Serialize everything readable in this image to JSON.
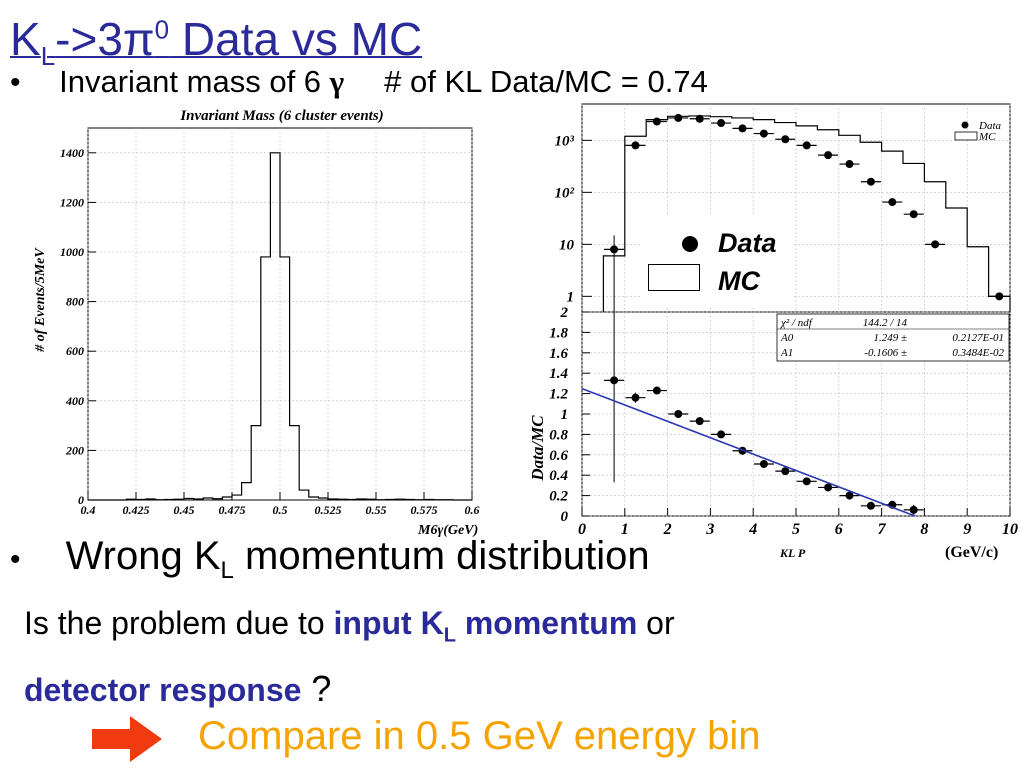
{
  "slide": {
    "title": {
      "main": "K",
      "sub": "L",
      "arrow": "->3",
      "pi": "π",
      "sup": "0",
      "rest": " Data vs MC"
    },
    "bullet_dot": "•",
    "bullet1": {
      "text": "Invariant mass of 6 ",
      "gamma": "γ",
      "ratio_text": "# of KL Data/MC  = 0.74"
    },
    "bullet2": {
      "pre": "Wrong K",
      "sub": "L",
      "post": " momentum distribution"
    },
    "question_line1": {
      "pre": "Is the problem due to ",
      "hl1": "input K",
      "hl1_sub": "L",
      "hl2": " momentum",
      "post": " or"
    },
    "question_line2": {
      "hl": "detector response",
      "post": " ?"
    },
    "compare_text": "Compare in 0.5 GeV energy bin",
    "arrow_color": "#f03a10",
    "accent_color": "#2a2a9a",
    "compare_color": "#f5a300"
  },
  "chart_data": [
    {
      "type": "bar",
      "title": "Invariant Mass (6 cluster events)",
      "xlabel": "M6γ(GeV)",
      "ylabel": "# of Events/5MeV",
      "xlim": [
        0.4,
        0.6
      ],
      "ylim": [
        0,
        1500
      ],
      "x_ticks": [
        "0.4",
        "0.425",
        "0.45",
        "0.475",
        "0.5",
        "0.525",
        "0.55",
        "0.575",
        "0.6"
      ],
      "y_ticks": [
        "0",
        "200",
        "400",
        "600",
        "800",
        "1000",
        "1200",
        "1400"
      ],
      "bin_width": 0.005,
      "bin_edges_start": 0.4,
      "values": [
        0,
        0,
        0,
        0,
        3,
        2,
        4,
        1,
        2,
        3,
        6,
        4,
        8,
        5,
        12,
        20,
        70,
        300,
        980,
        1400,
        980,
        300,
        40,
        12,
        8,
        4,
        3,
        2,
        4,
        3,
        1,
        2,
        3,
        2,
        1,
        2,
        1,
        1,
        0,
        0
      ]
    },
    {
      "type": "scatter",
      "title": "",
      "xlabel": "KL P",
      "x_unit": "(GeV/c)",
      "xlim": [
        0,
        10
      ],
      "x_ticks": [
        "0",
        "1",
        "2",
        "3",
        "4",
        "5",
        "6",
        "7",
        "8",
        "9",
        "10"
      ],
      "top_panel": {
        "scale": "log",
        "ylim": [
          0.5,
          5000
        ],
        "y_ticks": [
          "1",
          "10",
          "10²",
          "10³"
        ],
        "legend_small": [
          "Data",
          "MC"
        ],
        "legend": [
          "Data",
          "MC"
        ],
        "mc_histogram": {
          "name": "MC",
          "edges": [
            0.5,
            1.0,
            1.5,
            2.0,
            2.5,
            3.0,
            3.5,
            4.0,
            4.5,
            5.0,
            5.5,
            6.0,
            6.5,
            7.0,
            7.5,
            8.0,
            8.5,
            9.0,
            9.5,
            10.0
          ],
          "values": [
            6,
            1200,
            2500,
            2900,
            2950,
            2850,
            2700,
            2500,
            2200,
            1900,
            1600,
            1250,
            920,
            620,
            360,
            160,
            50,
            9,
            1
          ]
        },
        "data": {
          "name": "Data",
          "x": [
            0.75,
            1.25,
            1.75,
            2.25,
            2.75,
            3.25,
            3.75,
            4.25,
            4.75,
            5.25,
            5.75,
            6.25,
            6.75,
            7.25,
            7.75,
            8.25,
            9.75
          ],
          "y": [
            8,
            800,
            2300,
            2700,
            2600,
            2150,
            1700,
            1350,
            1050,
            800,
            520,
            350,
            160,
            65,
            38,
            10,
            1
          ]
        }
      },
      "bottom_panel": {
        "ylabel": "Data/MC",
        "ylim": [
          0,
          2
        ],
        "y_ticks": [
          "0",
          "0.2",
          "0.4",
          "0.6",
          "0.8",
          "1",
          "1.2",
          "1.4",
          "1.6",
          "1.8",
          "2"
        ],
        "fit_box": {
          "row0": [
            "χ² / ndf",
            "144.2  /  14",
            ""
          ],
          "row1": [
            "A0",
            "1.249 ±",
            "0.2127E-01"
          ],
          "row2": [
            "A1",
            "-0.1606 ±",
            "0.3484E-02"
          ]
        },
        "fit_line": {
          "a0": 1.249,
          "a1": -0.1606
        },
        "x": [
          0.75,
          1.25,
          1.75,
          2.25,
          2.75,
          3.25,
          3.75,
          4.25,
          4.75,
          5.25,
          5.75,
          6.25,
          6.75,
          7.25,
          7.75
        ],
        "y": [
          1.33,
          1.16,
          1.23,
          1.0,
          0.93,
          0.8,
          0.64,
          0.51,
          0.44,
          0.34,
          0.28,
          0.2,
          0.1,
          0.11,
          0.06
        ],
        "err": [
          1.0,
          0.05,
          0.03,
          0.02,
          0.02,
          0.02,
          0.02,
          0.02,
          0.02,
          0.02,
          0.02,
          0.02,
          0.03,
          0.03,
          0.05
        ]
      }
    }
  ]
}
